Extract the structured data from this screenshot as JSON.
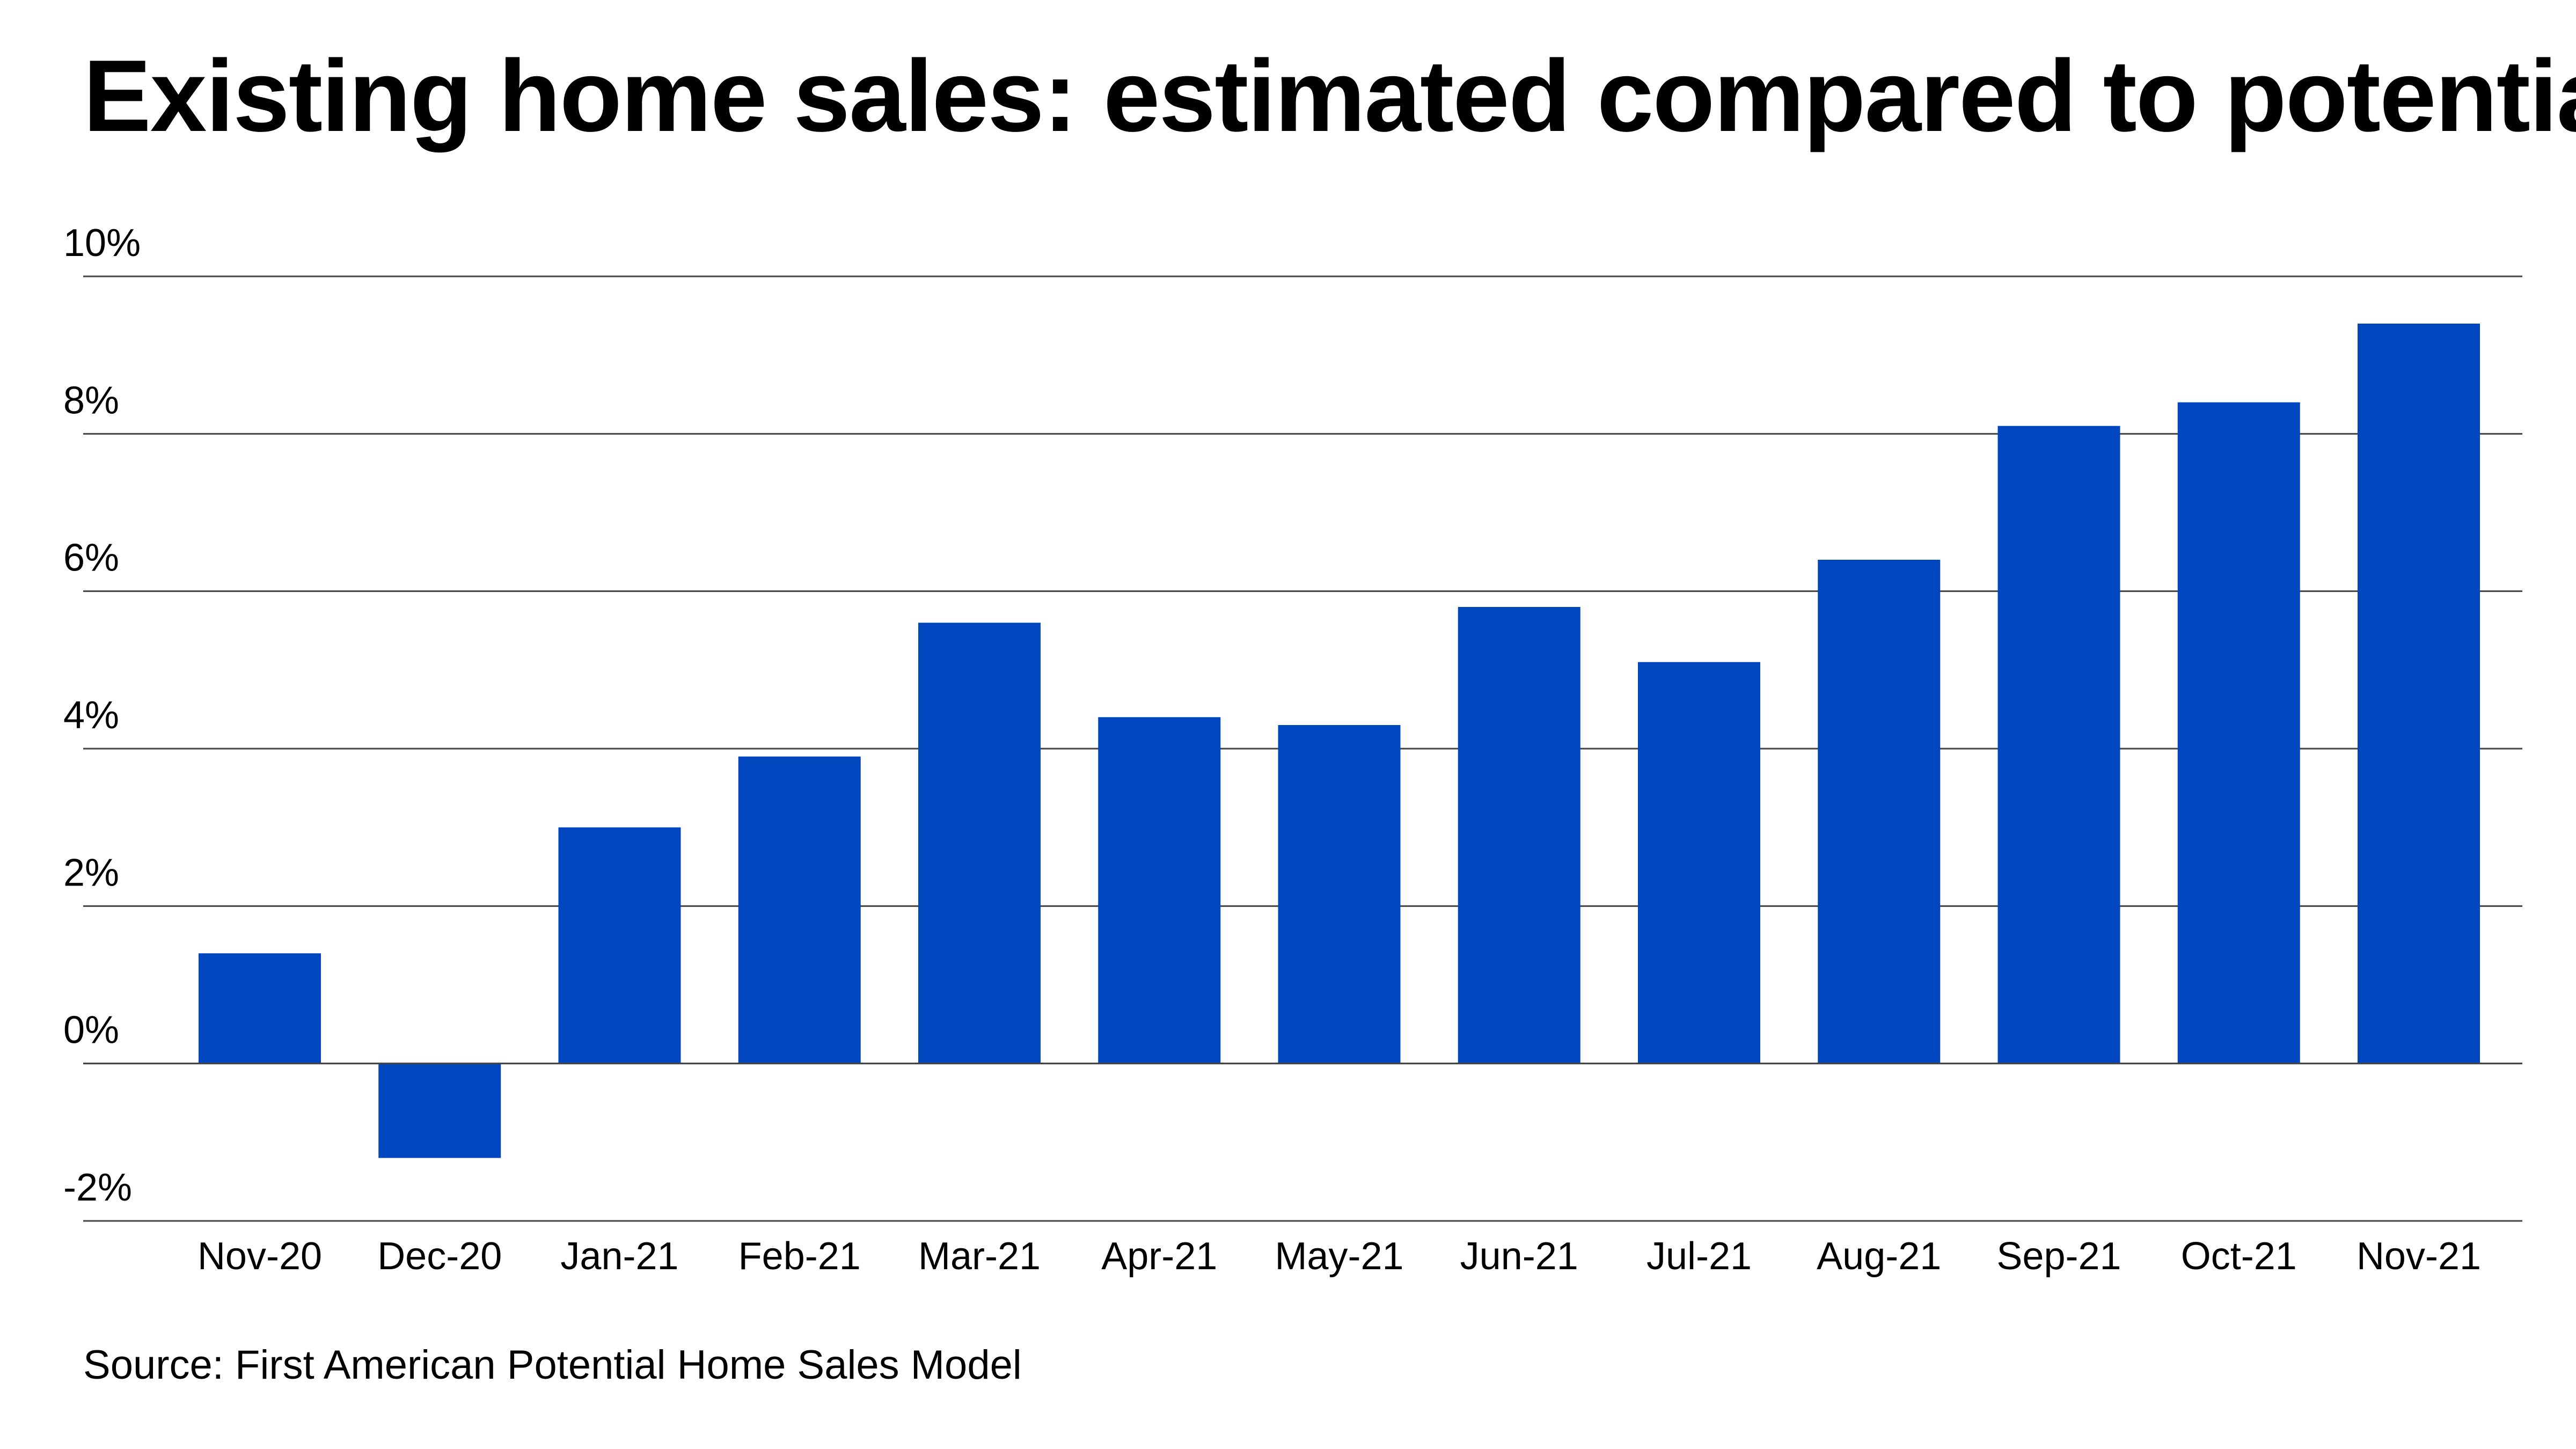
{
  "chart_data": {
    "type": "bar",
    "title": "Existing home sales: estimated compared to potential",
    "categories": [
      "Nov-20",
      "Dec-20",
      "Jan-21",
      "Feb-21",
      "Mar-21",
      "Apr-21",
      "May-21",
      "Jun-21",
      "Jul-21",
      "Aug-21",
      "Sep-21",
      "Oct-21",
      "Nov-21"
    ],
    "values": [
      1.4,
      -1.2,
      3.0,
      3.9,
      5.6,
      4.4,
      4.3,
      5.8,
      5.1,
      6.4,
      8.1,
      8.4,
      9.4
    ],
    "yticks": [
      "10%",
      "8%",
      "6%",
      "4%",
      "2%",
      "0%",
      "-2%"
    ],
    "ylim": [
      -2,
      10
    ],
    "grid": true,
    "bar_color": "#0046be",
    "xlabel": "",
    "ylabel": "",
    "source": "Source: First American Potential Home Sales Model"
  }
}
